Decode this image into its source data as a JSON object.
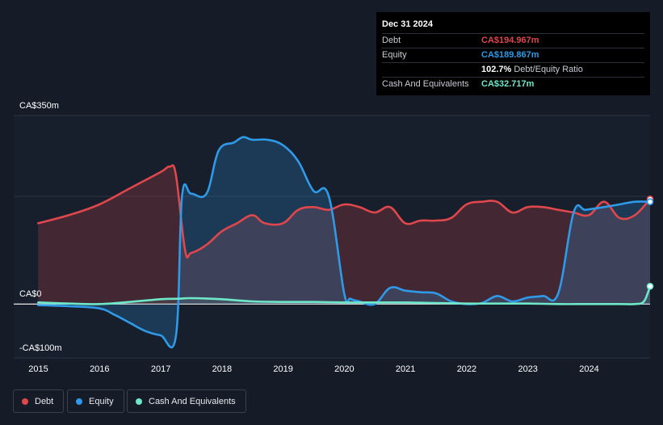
{
  "tooltip": {
    "date": "Dec 31 2024",
    "rows": [
      {
        "label": "Debt",
        "value": "CA$194.967m",
        "color": "#e0474c"
      },
      {
        "label": "Equity",
        "value": "CA$189.867m",
        "color": "#2f9ae8"
      },
      {
        "label": "",
        "value": "102.7%",
        "suffix": "Debt/Equity Ratio"
      },
      {
        "label": "Cash And Equivalents",
        "value": "CA$32.717m",
        "color": "#6ee7c9"
      }
    ]
  },
  "legend": [
    {
      "label": "Debt",
      "color": "#e0474c"
    },
    {
      "label": "Equity",
      "color": "#2f9ae8"
    },
    {
      "label": "Cash And Equivalents",
      "color": "#6ee7c9"
    }
  ],
  "chart_data": {
    "type": "area",
    "y_tick_labels": [
      "CA$350m",
      "CA$0",
      "-CA$100m"
    ],
    "ylim": [
      -100,
      350
    ],
    "x_tick_labels": [
      "2015",
      "2016",
      "2017",
      "2018",
      "2019",
      "2020",
      "2021",
      "2022",
      "2023",
      "2024"
    ],
    "xlim": [
      2014.6,
      2025.0
    ],
    "series": [
      {
        "name": "Debt",
        "color": "#e0474c",
        "x": [
          2015.0,
          2015.5,
          2016.0,
          2016.5,
          2017.0,
          2017.15,
          2017.25,
          2017.4,
          2017.5,
          2017.75,
          2018.0,
          2018.25,
          2018.5,
          2018.7,
          2019.0,
          2019.25,
          2019.5,
          2019.75,
          2020.0,
          2020.25,
          2020.5,
          2020.75,
          2021.0,
          2021.25,
          2021.5,
          2021.75,
          2022.0,
          2022.25,
          2022.5,
          2022.75,
          2023.0,
          2023.25,
          2023.5,
          2023.75,
          2024.0,
          2024.25,
          2024.5,
          2024.75,
          2025.0
        ],
        "values": [
          150,
          165,
          185,
          215,
          245,
          255,
          240,
          100,
          95,
          110,
          135,
          150,
          165,
          150,
          150,
          175,
          180,
          175,
          185,
          180,
          170,
          180,
          150,
          155,
          155,
          160,
          185,
          190,
          190,
          170,
          180,
          180,
          175,
          170,
          165,
          190,
          160,
          165,
          195
        ]
      },
      {
        "name": "Equity",
        "color": "#2f9ae8",
        "x": [
          2015.0,
          2015.5,
          2016.0,
          2016.25,
          2016.5,
          2016.75,
          2017.0,
          2017.25,
          2017.35,
          2017.5,
          2017.75,
          2017.95,
          2018.2,
          2018.35,
          2018.5,
          2018.75,
          2019.0,
          2019.25,
          2019.5,
          2019.75,
          2020.0,
          2020.1,
          2020.25,
          2020.5,
          2020.75,
          2021.0,
          2021.25,
          2021.5,
          2021.75,
          2022.0,
          2022.25,
          2022.5,
          2022.75,
          2023.0,
          2023.25,
          2023.5,
          2023.75,
          2023.95,
          2024.25,
          2024.5,
          2024.75,
          2025.0
        ],
        "values": [
          -2,
          -4,
          -8,
          -20,
          -35,
          -50,
          -58,
          -60,
          200,
          205,
          205,
          285,
          300,
          310,
          305,
          305,
          295,
          265,
          210,
          200,
          20,
          10,
          5,
          0,
          30,
          25,
          22,
          20,
          5,
          0,
          2,
          15,
          5,
          12,
          15,
          20,
          170,
          175,
          180,
          185,
          190,
          190
        ]
      },
      {
        "name": "Cash And Equivalents",
        "color": "#6ee7c9",
        "x": [
          2015.0,
          2015.5,
          2016.0,
          2016.5,
          2017.0,
          2017.3,
          2017.5,
          2018.0,
          2018.5,
          2019.0,
          2019.5,
          2020.0,
          2020.5,
          2021.0,
          2021.5,
          2022.0,
          2022.5,
          2023.0,
          2023.5,
          2024.0,
          2024.5,
          2024.75,
          2024.9,
          2025.0
        ],
        "values": [
          3,
          1,
          0,
          4,
          9,
          10,
          11,
          9,
          5,
          4,
          4,
          3,
          3,
          3,
          2,
          1,
          1,
          1,
          0,
          0,
          0,
          0,
          5,
          33
        ]
      }
    ]
  }
}
